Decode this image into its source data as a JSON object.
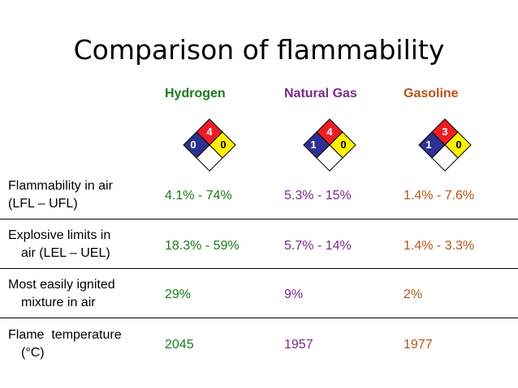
{
  "title": "Comparison of flammability",
  "colors": {
    "hydrogen": "#1a7a1a",
    "natural_gas": "#7b2a8c",
    "gasoline": "#b85418",
    "nfpa_red": "#ee1c24",
    "nfpa_blue": "#2e3192",
    "nfpa_yellow": "#fff200",
    "nfpa_white": "#ffffff"
  },
  "columns": [
    {
      "name": "Hydrogen",
      "nfpa": {
        "flammability": "4",
        "health": "0",
        "reactivity": "0"
      }
    },
    {
      "name": "Natural Gas",
      "nfpa": {
        "flammability": "4",
        "health": "1",
        "reactivity": "0"
      }
    },
    {
      "name": "Gasoline",
      "nfpa": {
        "flammability": "3",
        "health": "1",
        "reactivity": "0"
      }
    }
  ],
  "rows": [
    {
      "label_line1": "Flammability in air",
      "label_line2": "(LFL – UFL)",
      "values": [
        "4.1% - 74%",
        "5.3% - 15%",
        "1.4% - 7.6%"
      ]
    },
    {
      "label_line1": "Explosive limits in",
      "label_line2": "air (LEL – UEL)",
      "values": [
        "18.3% - 59%",
        "5.7% - 14%",
        "1.4% - 3.3%"
      ]
    },
    {
      "label_line1": "Most easily ignited",
      "label_line2": "mixture in air",
      "values": [
        "29%",
        "9%",
        "2%"
      ]
    },
    {
      "label_line1": "Flame  temperature",
      "label_line2": "(°C)",
      "values": [
        "2045",
        "1957",
        "1977"
      ]
    }
  ]
}
